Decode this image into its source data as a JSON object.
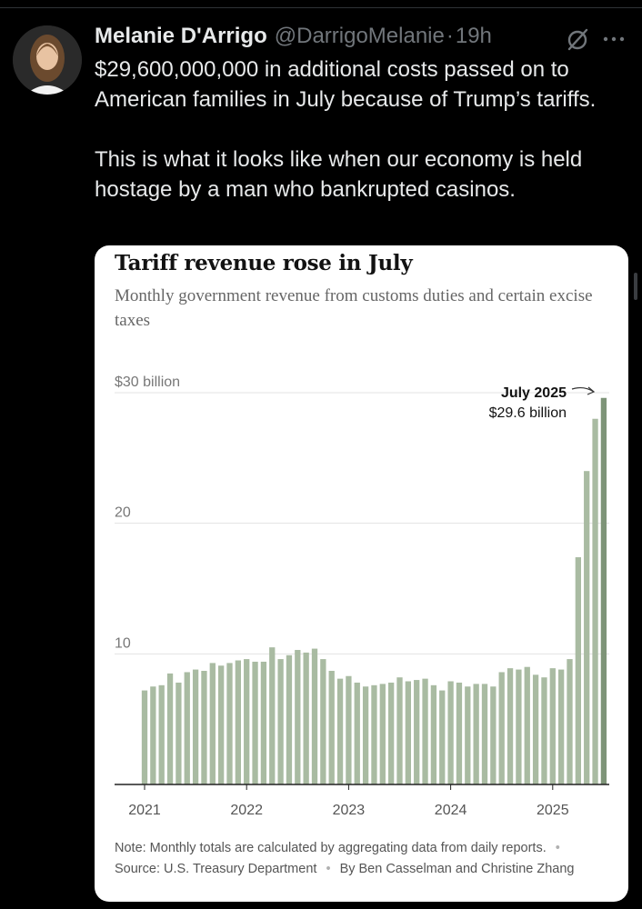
{
  "tweet": {
    "author_name": "Melanie D'Arrigo",
    "handle": "@DarrigoMelanie",
    "separator": "·",
    "time": "19h",
    "paragraph_1": "$29,600,000,000 in additional costs passed on to American families in July because of Trump’s tariffs.",
    "paragraph_2": "This is what it looks like when our economy is held hostage by a man who bankrupted casinos."
  },
  "icons": {
    "grok": "grok-icon",
    "more": "more-icon"
  },
  "colors": {
    "background": "#000000",
    "text": "#e7e9ea",
    "muted": "#71767b",
    "bar": "#a9bba2",
    "bar_latest": "#7e9478"
  },
  "chart_data": {
    "type": "bar",
    "title": "Tariff revenue rose in July",
    "subtitle": "Monthly government revenue from customs duties and certain excise taxes",
    "ylim": [
      0,
      30
    ],
    "y_ticks": [
      {
        "value": 30,
        "label": "$30 billion"
      },
      {
        "value": 20,
        "label": "20"
      },
      {
        "value": 10,
        "label": "10"
      }
    ],
    "x_ticks": [
      {
        "index": 0,
        "label": "2021"
      },
      {
        "index": 12,
        "label": "2022"
      },
      {
        "index": 24,
        "label": "2023"
      },
      {
        "index": 36,
        "label": "2024"
      },
      {
        "index": 48,
        "label": "2025"
      }
    ],
    "grid": true,
    "legend": "none",
    "annotation": {
      "index": 54,
      "label": "July 2025",
      "value_label": "$29.6 billion"
    },
    "series": [
      {
        "values": [
          7.2,
          7.5,
          7.6,
          8.5,
          7.8,
          8.6,
          8.8,
          8.7,
          9.3,
          9.1,
          9.3,
          9.5,
          9.6,
          9.4,
          9.4,
          10.5,
          9.6,
          9.9,
          10.3,
          10.1,
          10.4,
          9.6,
          8.7,
          8.1,
          8.3,
          7.8,
          7.5,
          7.6,
          7.7,
          7.8,
          8.2,
          7.9,
          8.0,
          8.1,
          7.6,
          7.2,
          7.9,
          7.8,
          7.5,
          7.7,
          7.7,
          7.5,
          8.6,
          8.9,
          8.8,
          9.0,
          8.4,
          8.2,
          8.9,
          8.8,
          9.6,
          17.4,
          24.0,
          28.0,
          29.6
        ]
      }
    ]
  },
  "chart_note": {
    "note": "Note: Monthly totals are calculated by aggregating data from daily reports.",
    "bullet": "•",
    "source": "Source: U.S. Treasury Department",
    "byline": "By Ben Casselman and Christine Zhang"
  }
}
